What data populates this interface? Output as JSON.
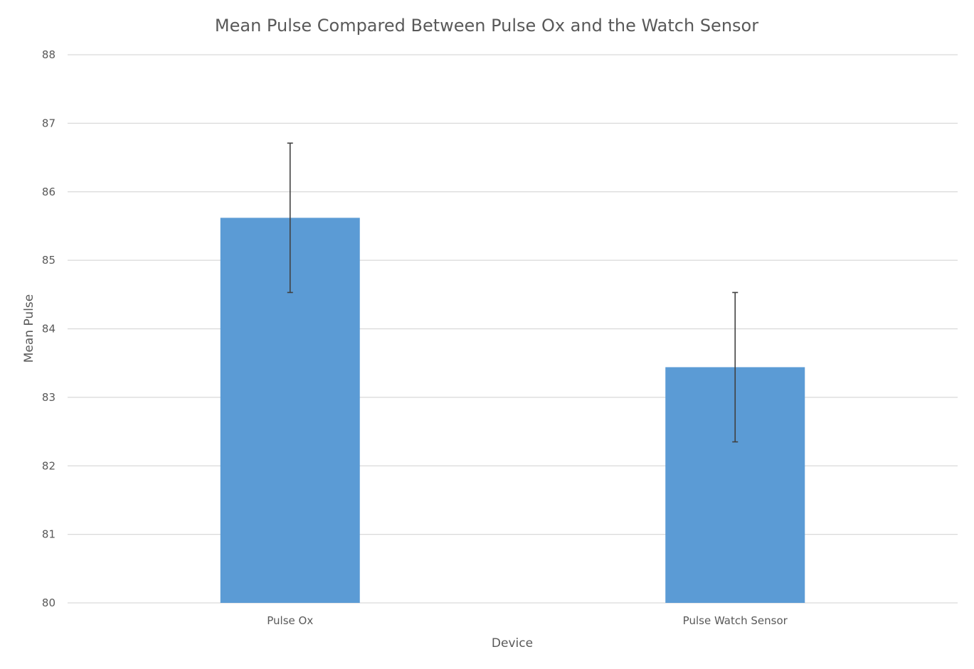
{
  "chart_data": {
    "type": "bar",
    "title": "Mean Pulse Compared Between Pulse Ox and the Watch Sensor",
    "xlabel": "Device",
    "ylabel": "Mean Pulse",
    "categories": [
      "Pulse Ox",
      "Pulse Watch Sensor"
    ],
    "values": [
      85.62,
      83.44
    ],
    "error": [
      1.09,
      1.09
    ],
    "ylim": [
      80,
      88
    ],
    "yticks": [
      "80",
      "81",
      "82",
      "83",
      "84",
      "85",
      "86",
      "87",
      "88"
    ],
    "grid": true,
    "legend": "none",
    "bar_color": "#5b9bd5"
  }
}
